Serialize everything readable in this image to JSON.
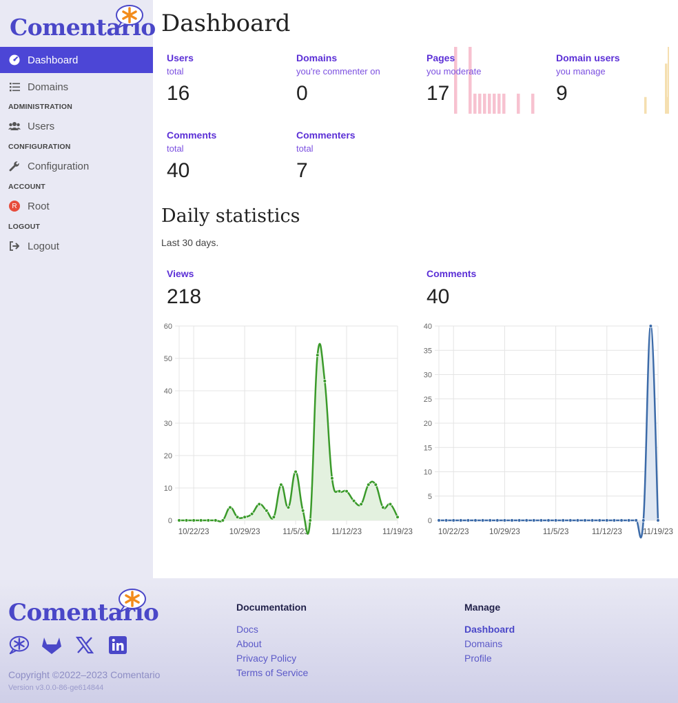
{
  "brand": {
    "name": "Comentario"
  },
  "sidebar": {
    "items": [
      {
        "label": "Dashboard",
        "icon": "gauge-icon",
        "active": true
      },
      {
        "label": "Domains",
        "icon": "list-icon"
      },
      {
        "section": "ADMINISTRATION"
      },
      {
        "label": "Users",
        "icon": "users-icon"
      },
      {
        "section": "CONFIGURATION"
      },
      {
        "label": "Configuration",
        "icon": "wrench-icon"
      },
      {
        "section": "ACCOUNT"
      },
      {
        "label": "Root",
        "icon": "avatar-badge",
        "badge": "R"
      },
      {
        "section": "LOGOUT"
      },
      {
        "label": "Logout",
        "icon": "logout-icon"
      }
    ]
  },
  "main": {
    "title": "Dashboard",
    "stats": [
      {
        "label": "Users",
        "sub": "total",
        "value": "16"
      },
      {
        "label": "Domains",
        "sub": "you're commenter on",
        "value": "0"
      },
      {
        "label": "Pages",
        "sub": "you moderate",
        "value": "17"
      },
      {
        "label": "Domain users",
        "sub": "you manage",
        "value": "9"
      },
      {
        "label": "Comments",
        "sub": "total",
        "value": "40"
      },
      {
        "label": "Commenters",
        "sub": "total",
        "value": "7"
      }
    ],
    "daily_title": "Daily statistics",
    "daily_desc": "Last 30 days.",
    "views_label": "Views",
    "views_total": "218",
    "comments_label": "Comments",
    "comments_total": "40"
  },
  "chart_data": [
    {
      "type": "area",
      "name": "Views",
      "x": [
        "10/20/23",
        "10/21/23",
        "10/22/23",
        "10/23/23",
        "10/24/23",
        "10/25/23",
        "10/26/23",
        "10/27/23",
        "10/28/23",
        "10/29/23",
        "10/30/23",
        "10/31/23",
        "11/1/23",
        "11/2/23",
        "11/3/23",
        "11/4/23",
        "11/5/23",
        "11/6/23",
        "11/7/23",
        "11/8/23",
        "11/9/23",
        "11/10/23",
        "11/11/23",
        "11/12/23",
        "11/13/23",
        "11/14/23",
        "11/15/23",
        "11/16/23",
        "11/17/23",
        "11/18/23",
        "11/19/23"
      ],
      "values": [
        0,
        0,
        0,
        0,
        0,
        0,
        0,
        4,
        1,
        1,
        2,
        5,
        3,
        1,
        11,
        4,
        15,
        3,
        0,
        51,
        43,
        13,
        9,
        9,
        6,
        5,
        11,
        11,
        4,
        5,
        1
      ],
      "xticks": [
        "10/22/23",
        "10/29/23",
        "11/5/23",
        "11/12/23",
        "11/19/23"
      ],
      "yticks": [
        0,
        10,
        20,
        30,
        40,
        50,
        60
      ],
      "ylim": [
        0,
        60
      ],
      "color": "#3a9a2a",
      "fill": "#e3f1df",
      "grid": true
    },
    {
      "type": "area",
      "name": "Comments",
      "x": [
        "10/20/23",
        "10/21/23",
        "10/22/23",
        "10/23/23",
        "10/24/23",
        "10/25/23",
        "10/26/23",
        "10/27/23",
        "10/28/23",
        "10/29/23",
        "10/30/23",
        "10/31/23",
        "11/1/23",
        "11/2/23",
        "11/3/23",
        "11/4/23",
        "11/5/23",
        "11/6/23",
        "11/7/23",
        "11/8/23",
        "11/9/23",
        "11/10/23",
        "11/11/23",
        "11/12/23",
        "11/13/23",
        "11/14/23",
        "11/15/23",
        "11/16/23",
        "11/17/23",
        "11/18/23",
        "11/19/23"
      ],
      "values": [
        0,
        0,
        0,
        0,
        0,
        0,
        0,
        0,
        0,
        0,
        0,
        0,
        0,
        0,
        0,
        0,
        0,
        0,
        0,
        0,
        0,
        0,
        0,
        0,
        0,
        0,
        0,
        0,
        0,
        40,
        0
      ],
      "xticks": [
        "10/22/23",
        "10/29/23",
        "11/5/23",
        "11/12/23",
        "11/19/23"
      ],
      "yticks": [
        0,
        5,
        10,
        15,
        20,
        25,
        30,
        35,
        40
      ],
      "ylim": [
        0,
        40
      ],
      "color": "#3b6aa8",
      "fill": "#dfe7f2",
      "grid": true
    },
    {
      "type": "bar",
      "name": "Pages sparkline",
      "values": [
        10,
        0,
        0,
        10,
        3,
        3,
        3,
        3,
        3,
        3,
        3,
        0,
        0,
        3,
        0,
        0,
        3
      ],
      "color": "#f7c2d0"
    },
    {
      "type": "bar",
      "name": "Domain users sparkline",
      "values": [
        0,
        0,
        0,
        0,
        0,
        0,
        0,
        0,
        0,
        0,
        0,
        0,
        0,
        3,
        0,
        0,
        0,
        0,
        0,
        0,
        0,
        0,
        0,
        0,
        0,
        0,
        0,
        0,
        9,
        3,
        12
      ],
      "color": "#f5dfb0"
    }
  ],
  "footer": {
    "docs_heading": "Documentation",
    "docs_links": [
      "Docs",
      "About",
      "Privacy Policy",
      "Terms of Service"
    ],
    "manage_heading": "Manage",
    "manage_links": [
      "Dashboard",
      "Domains",
      "Profile"
    ],
    "copyright": "Copyright ©2022–2023 Comentario",
    "version": "Version v3.0.0-86-ge614844"
  },
  "colors": {
    "accent": "#4c46d6",
    "label": "#5b2fd6"
  }
}
